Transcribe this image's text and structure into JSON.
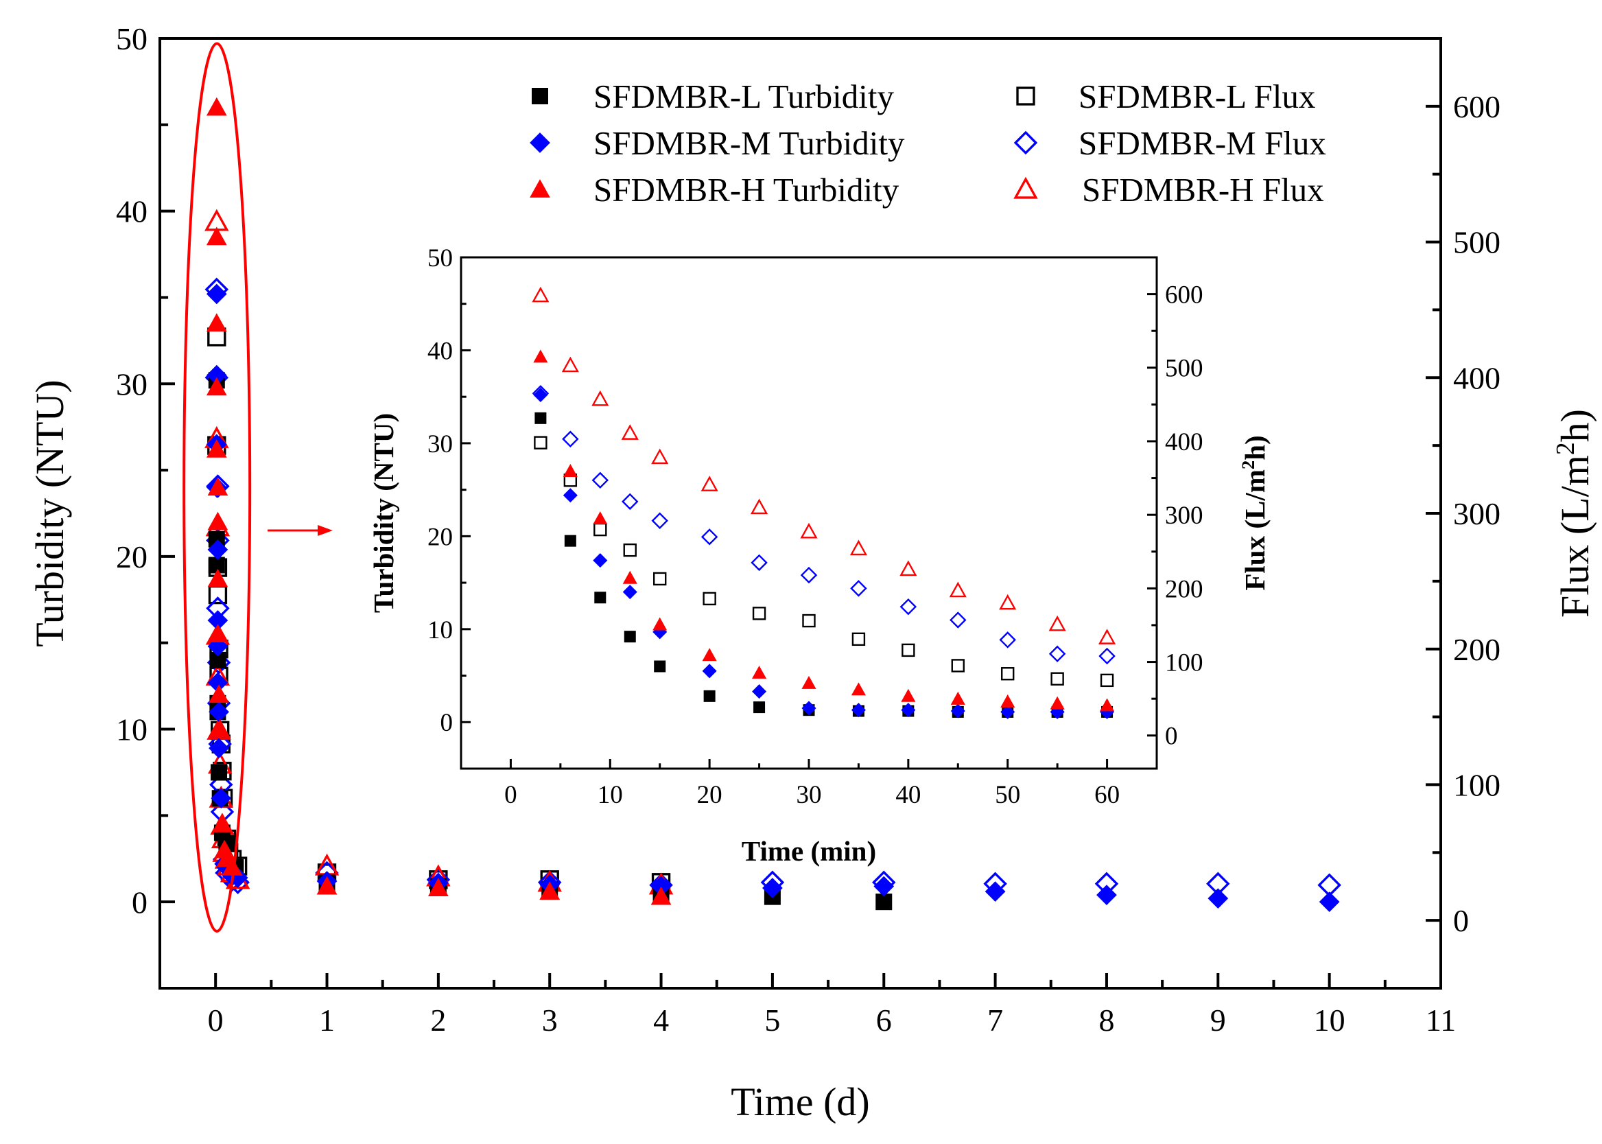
{
  "colors": {
    "black": "#000000",
    "blue": "#0000ff",
    "red": "#ff0000"
  },
  "chart_data": [
    {
      "type": "scatter",
      "panel": "main",
      "xlabel": "Time (d)",
      "ylabel_left": "Turbidity (NTU)",
      "ylabel_right": "Flux (L/m²h)",
      "xlim": [
        -0.5,
        11
      ],
      "ylim_left": [
        -5,
        50
      ],
      "ylim_right": [
        -50,
        650
      ],
      "x_ticks": [
        0,
        1,
        2,
        3,
        4,
        5,
        6,
        7,
        8,
        9,
        10,
        11
      ],
      "y_ticks_left": [
        0,
        10,
        20,
        30,
        40,
        50
      ],
      "y_ticks_right": [
        0,
        100,
        200,
        300,
        400,
        500,
        600
      ],
      "grid": false,
      "legend_position": "top-right",
      "series": [
        {
          "name": "SFDMBR-L  Turbidity",
          "axis": "left",
          "marker": "square-filled",
          "color": "black",
          "points": [
            [
              0.01,
              30.2
            ],
            [
              0.01,
              21
            ],
            [
              0.01,
              19.5
            ],
            [
              0.02,
              14
            ],
            [
              0.02,
              11.5
            ],
            [
              0.02,
              11
            ],
            [
              0.03,
              7.5
            ],
            [
              0.04,
              6
            ],
            [
              0.06,
              4
            ],
            [
              0.1,
              3.4
            ],
            [
              0.18,
              2
            ],
            [
              1,
              1.1
            ],
            [
              2,
              0.9
            ],
            [
              3,
              0.6
            ],
            [
              4,
              0.5
            ],
            [
              5,
              0.3
            ],
            [
              6,
              0
            ]
          ]
        },
        {
          "name": "SFDMBR-M Turbidity",
          "axis": "left",
          "marker": "diamond-filled",
          "color": "blue",
          "points": [
            [
              0.01,
              35.2
            ],
            [
              0.01,
              30.5
            ],
            [
              0.01,
              26.5
            ],
            [
              0.01,
              24
            ],
            [
              0.02,
              20.4
            ],
            [
              0.02,
              16.3
            ],
            [
              0.02,
              14.8
            ],
            [
              0.02,
              12.7
            ],
            [
              0.03,
              11
            ],
            [
              0.03,
              8.9
            ],
            [
              0.05,
              6
            ],
            [
              0.08,
              2.2
            ],
            [
              0.1,
              2
            ],
            [
              0.15,
              1.5
            ],
            [
              0.2,
              1.4
            ],
            [
              1,
              1.2
            ],
            [
              2,
              1.1
            ],
            [
              3,
              1
            ],
            [
              4,
              0.9
            ],
            [
              5,
              0.8
            ],
            [
              6,
              0.9
            ],
            [
              7,
              0.6
            ],
            [
              8,
              0.4
            ],
            [
              9,
              0.2
            ],
            [
              10,
              0
            ]
          ]
        },
        {
          "name": "SFDMBR-H  Turbidity",
          "axis": "left",
          "marker": "triangle-filled",
          "color": "red",
          "points": [
            [
              0.01,
              46
            ],
            [
              0.01,
              38.5
            ],
            [
              0.01,
              33.5
            ],
            [
              0.01,
              29.8
            ],
            [
              0.01,
              26.2
            ],
            [
              0.02,
              24
            ],
            [
              0.02,
              22
            ],
            [
              0.02,
              18.7
            ],
            [
              0.02,
              15.5
            ],
            [
              0.03,
              12
            ],
            [
              0.04,
              10
            ],
            [
              0.06,
              4.5
            ],
            [
              0.08,
              3
            ],
            [
              0.1,
              2.5
            ],
            [
              0.15,
              2
            ],
            [
              1,
              0.9
            ],
            [
              2,
              0.8
            ],
            [
              3,
              0.6
            ],
            [
              4,
              0.3
            ]
          ]
        },
        {
          "name": "SFDMBR-L  Flux",
          "axis": "right",
          "marker": "square-open",
          "color": "black",
          "points": [
            [
              0.01,
              430
            ],
            [
              0.01,
              350
            ],
            [
              0.02,
              260
            ],
            [
              0.02,
              240
            ],
            [
              0.03,
              200
            ],
            [
              0.03,
              180
            ],
            [
              0.04,
              140
            ],
            [
              0.05,
              130
            ],
            [
              0.06,
              110
            ],
            [
              0.07,
              90
            ],
            [
              0.1,
              60
            ],
            [
              0.12,
              50
            ],
            [
              0.15,
              45
            ],
            [
              0.2,
              40
            ],
            [
              1,
              35
            ],
            [
              2,
              30
            ],
            [
              3,
              30
            ],
            [
              4,
              28
            ]
          ]
        },
        {
          "name": "SFDMBR-M Flux",
          "axis": "right",
          "marker": "diamond-open",
          "color": "blue",
          "points": [
            [
              0.01,
              465
            ],
            [
              0.01,
              400
            ],
            [
              0.02,
              320
            ],
            [
              0.02,
              280
            ],
            [
              0.02,
              230
            ],
            [
              0.03,
              190
            ],
            [
              0.03,
              160
            ],
            [
              0.04,
              130
            ],
            [
              0.05,
              100
            ],
            [
              0.06,
              80
            ],
            [
              0.08,
              45
            ],
            [
              0.1,
              35
            ],
            [
              0.15,
              30
            ],
            [
              0.2,
              28
            ],
            [
              1,
              35
            ],
            [
              2,
              30
            ],
            [
              3,
              28
            ],
            [
              4,
              26
            ],
            [
              5,
              28
            ],
            [
              6,
              28
            ],
            [
              7,
              27
            ],
            [
              8,
              27
            ],
            [
              9,
              27
            ],
            [
              10,
              26
            ]
          ]
        },
        {
          "name": "SFDMBR-H  Flux",
          "axis": "right",
          "marker": "triangle-open",
          "color": "red",
          "points": [
            [
              0.01,
              515
            ],
            [
              0.01,
              355
            ],
            [
              0.02,
              290
            ],
            [
              0.02,
              210
            ],
            [
              0.02,
              180
            ],
            [
              0.03,
              140
            ],
            [
              0.04,
              115
            ],
            [
              0.05,
              90
            ],
            [
              0.06,
              70
            ],
            [
              0.07,
              60
            ],
            [
              0.08,
              50
            ],
            [
              0.1,
              45
            ],
            [
              0.12,
              40
            ],
            [
              0.15,
              35
            ],
            [
              0.2,
              30
            ],
            [
              1,
              40
            ],
            [
              2,
              32
            ],
            [
              3,
              28
            ],
            [
              4,
              26
            ]
          ]
        }
      ]
    },
    {
      "type": "scatter",
      "panel": "inset",
      "xlabel": "Time (min)",
      "ylabel_left": "Turbidity (NTU)",
      "ylabel_right": "Flux (L/m²h)",
      "xlim": [
        -5,
        65
      ],
      "ylim_left": [
        -5,
        50
      ],
      "ylim_right": [
        -45,
        650
      ],
      "x_ticks": [
        0,
        10,
        20,
        30,
        40,
        50,
        60
      ],
      "y_ticks_left": [
        0,
        10,
        20,
        30,
        40,
        50
      ],
      "y_ticks_right": [
        0,
        100,
        200,
        300,
        400,
        500,
        600
      ],
      "grid": false,
      "series": [
        {
          "name": "SFDMBR-L  Turbidity",
          "axis": "left",
          "marker": "square-filled",
          "color": "black",
          "points": [
            [
              3,
              32.7
            ],
            [
              6,
              19.5
            ],
            [
              9,
              13.4
            ],
            [
              12,
              9.2
            ],
            [
              15,
              6
            ],
            [
              20,
              2.8
            ],
            [
              25,
              1.6
            ],
            [
              30,
              1.3
            ],
            [
              35,
              1.2
            ],
            [
              40,
              1.2
            ],
            [
              45,
              1.1
            ],
            [
              50,
              1.1
            ],
            [
              55,
              1.1
            ],
            [
              60,
              1.1
            ]
          ]
        },
        {
          "name": "SFDMBR-M Turbidity",
          "axis": "left",
          "marker": "diamond-filled",
          "color": "blue",
          "points": [
            [
              3,
              35.2
            ],
            [
              6,
              24.4
            ],
            [
              9,
              17.4
            ],
            [
              12,
              14
            ],
            [
              15,
              9.7
            ],
            [
              20,
              5.5
            ],
            [
              25,
              3.3
            ],
            [
              30,
              1.5
            ],
            [
              35,
              1.3
            ],
            [
              40,
              1.3
            ],
            [
              45,
              1.2
            ],
            [
              50,
              1.1
            ],
            [
              55,
              1.1
            ],
            [
              60,
              1.1
            ]
          ]
        },
        {
          "name": "SFDMBR-H  Turbidity",
          "axis": "left",
          "marker": "triangle-filled",
          "color": "red",
          "points": [
            [
              3,
              39.3
            ],
            [
              6,
              27
            ],
            [
              9,
              21.9
            ],
            [
              12,
              15.5
            ],
            [
              15,
              10.5
            ],
            [
              20,
              7.2
            ],
            [
              25,
              5.3
            ],
            [
              30,
              4.2
            ],
            [
              35,
              3.5
            ],
            [
              40,
              2.8
            ],
            [
              45,
              2.5
            ],
            [
              50,
              2.2
            ],
            [
              55,
              2
            ],
            [
              60,
              1.8
            ]
          ]
        },
        {
          "name": "SFDMBR-L  Flux",
          "axis": "right",
          "marker": "square-open",
          "color": "black",
          "points": [
            [
              3,
              398
            ],
            [
              6,
              347
            ],
            [
              9,
              280
            ],
            [
              12,
              252
            ],
            [
              15,
              213
            ],
            [
              20,
              186
            ],
            [
              25,
              166
            ],
            [
              30,
              156
            ],
            [
              35,
              131
            ],
            [
              40,
              116
            ],
            [
              45,
              95
            ],
            [
              50,
              84
            ],
            [
              55,
              77
            ],
            [
              60,
              75
            ]
          ]
        },
        {
          "name": "SFDMBR-M Flux",
          "axis": "right",
          "marker": "diamond-open",
          "color": "blue",
          "points": [
            [
              3,
              465
            ],
            [
              6,
              403
            ],
            [
              9,
              347
            ],
            [
              12,
              318
            ],
            [
              15,
              292
            ],
            [
              20,
              270
            ],
            [
              25,
              235
            ],
            [
              30,
              218
            ],
            [
              35,
              200
            ],
            [
              40,
              175
            ],
            [
              45,
              157
            ],
            [
              50,
              130
            ],
            [
              55,
              111
            ],
            [
              60,
              108
            ]
          ]
        },
        {
          "name": "SFDMBR-H  Flux",
          "axis": "right",
          "marker": "triangle-open",
          "color": "red",
          "points": [
            [
              3,
              598
            ],
            [
              6,
              503
            ],
            [
              9,
              457
            ],
            [
              12,
              411
            ],
            [
              15,
              378
            ],
            [
              20,
              341
            ],
            [
              25,
              310
            ],
            [
              30,
              277
            ],
            [
              35,
              254
            ],
            [
              40,
              226
            ],
            [
              45,
              197
            ],
            [
              50,
              180
            ],
            [
              55,
              151
            ],
            [
              60,
              133
            ]
          ]
        }
      ]
    }
  ],
  "legend": [
    {
      "label": "SFDMBR-L  Turbidity",
      "marker": "square-filled",
      "color": "black"
    },
    {
      "label": "SFDMBR-M Turbidity",
      "marker": "diamond-filled",
      "color": "blue"
    },
    {
      "label": "SFDMBR-H  Turbidity",
      "marker": "triangle-filled",
      "color": "red"
    },
    {
      "label": "SFDMBR-L  Flux",
      "marker": "square-open",
      "color": "black"
    },
    {
      "label": "SFDMBR-M Flux",
      "marker": "diamond-open",
      "color": "blue"
    },
    {
      "label": "SFDMBR-H  Flux",
      "marker": "triangle-open",
      "color": "red"
    }
  ],
  "highlight": {
    "x": 0,
    "y_range": [
      -1.7,
      49.7
    ],
    "color": "red"
  }
}
